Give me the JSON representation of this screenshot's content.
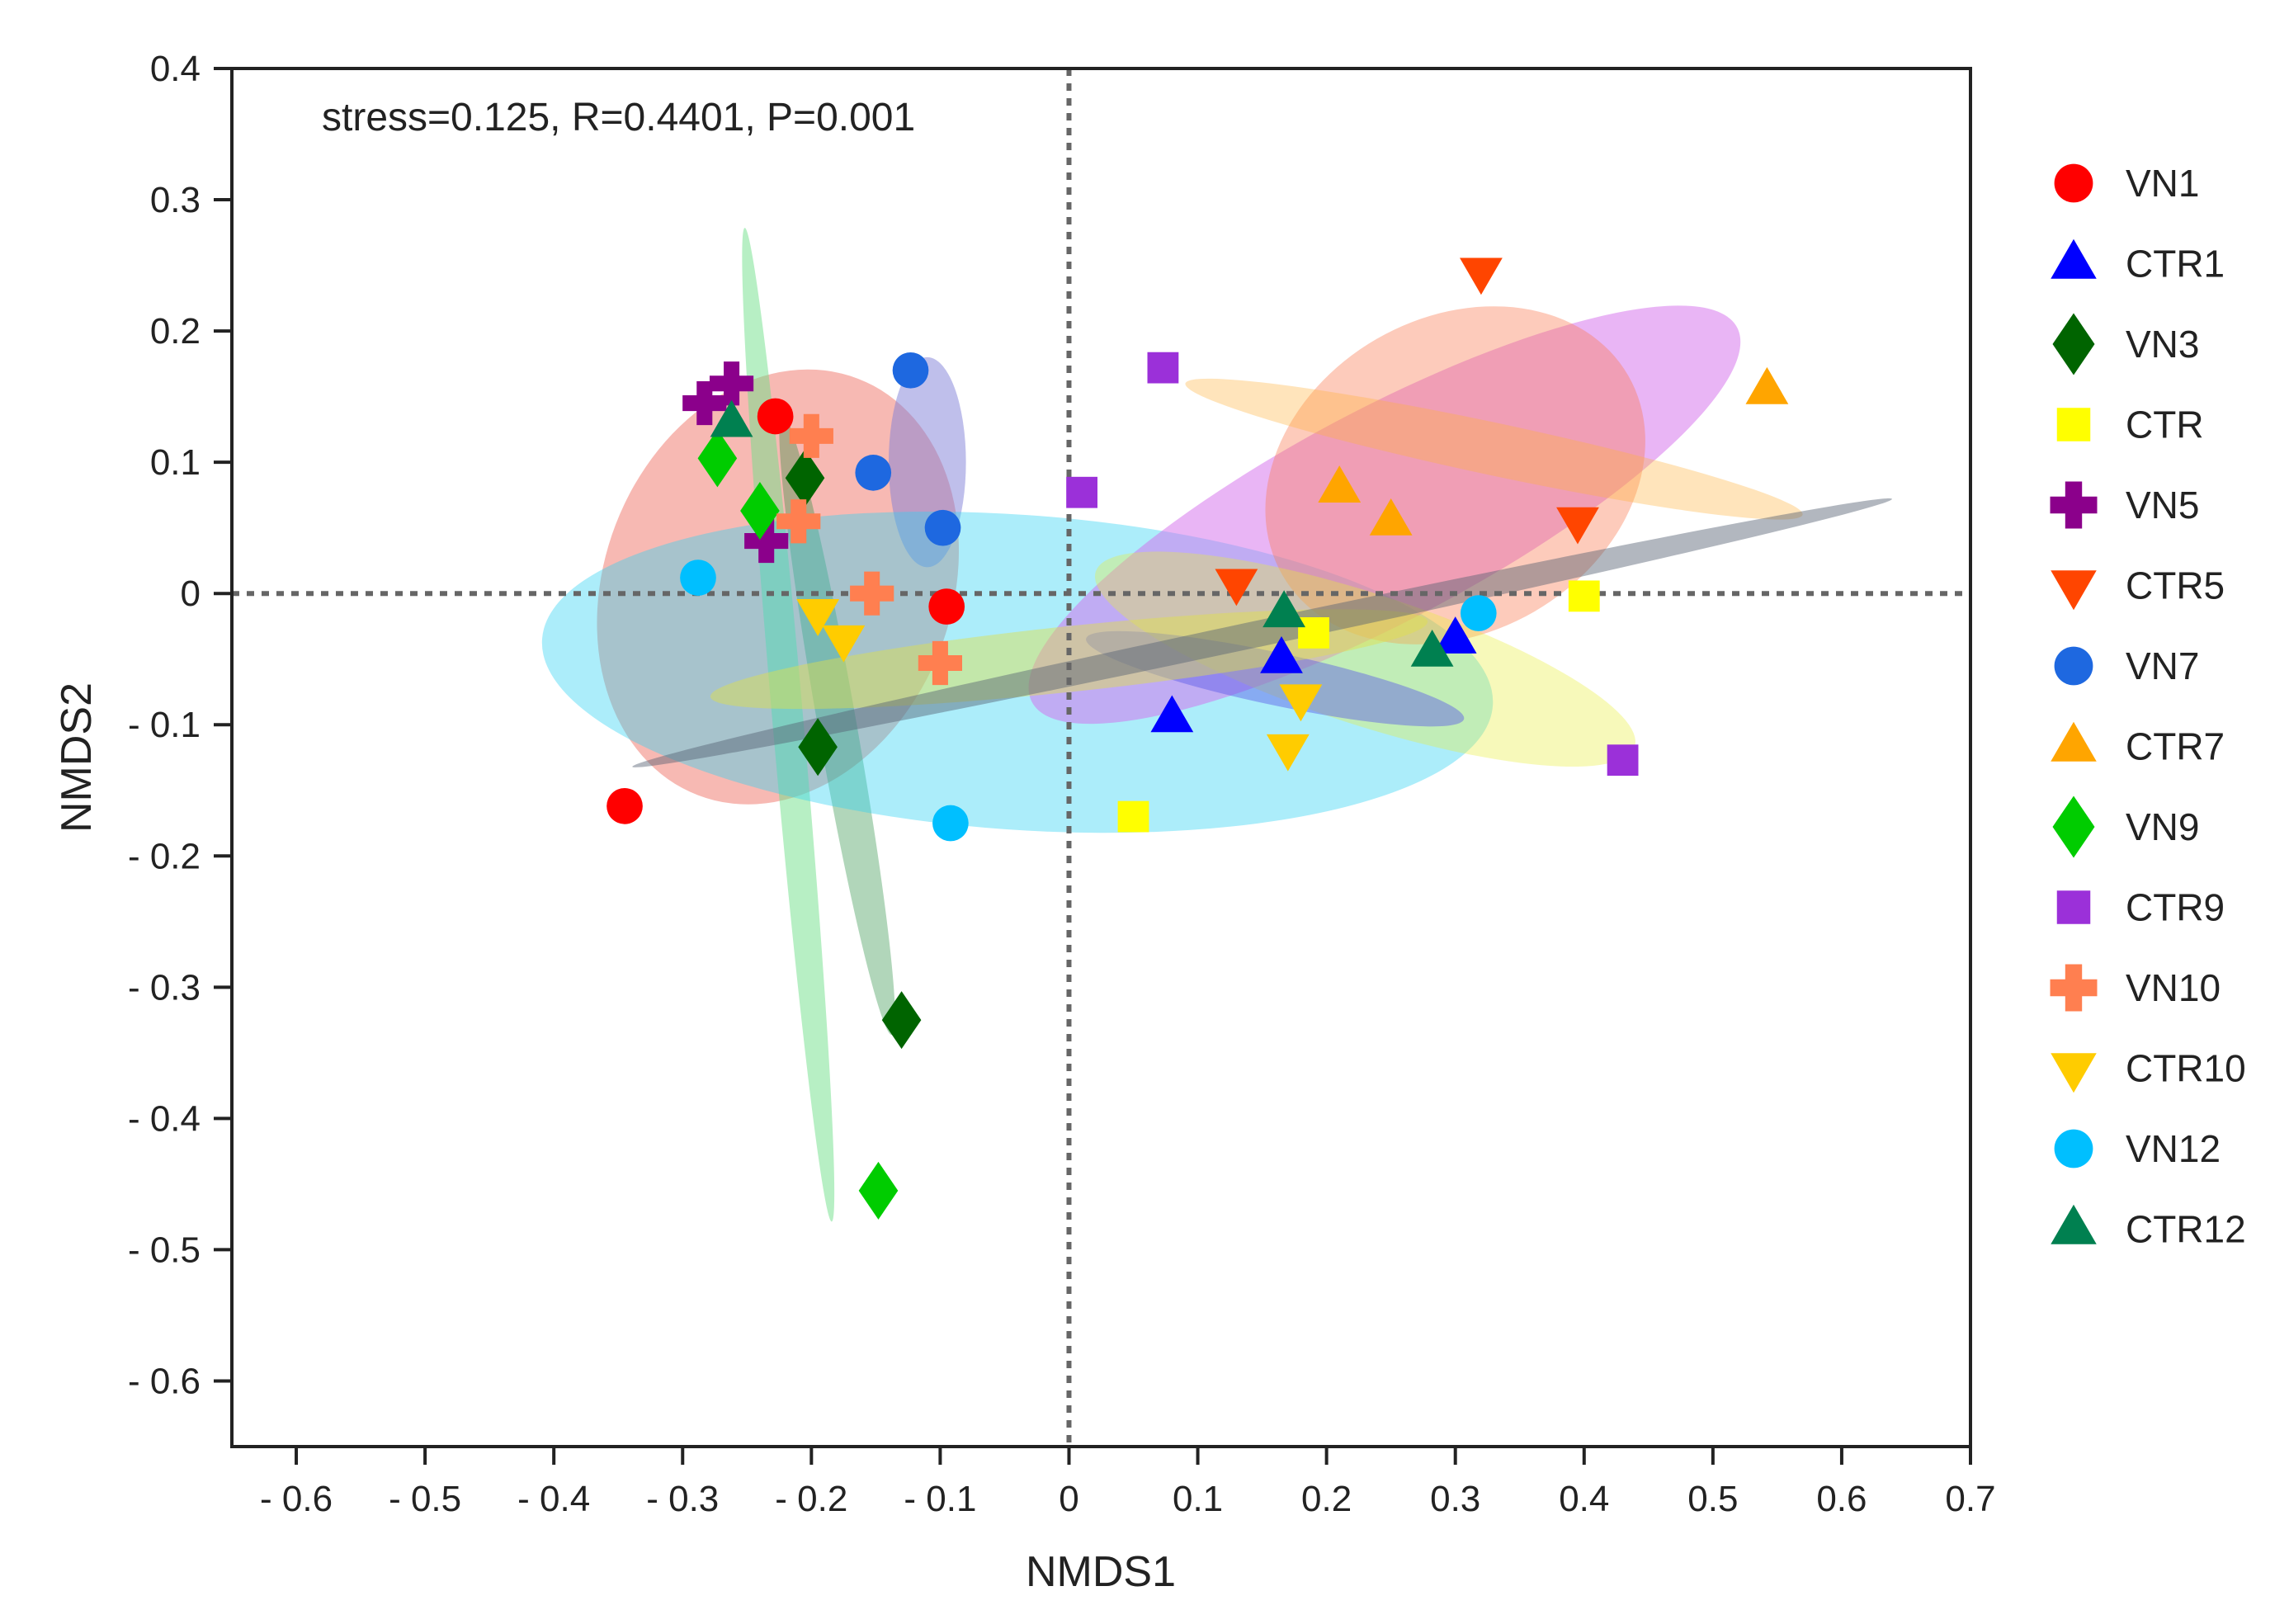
{
  "chart_data": {
    "type": "scatter",
    "title": "",
    "xlabel": "NMDS1",
    "ylabel": "NMDS2",
    "xlim": [
      -0.65,
      0.7
    ],
    "ylim": [
      -0.65,
      0.4
    ],
    "xticks": [
      -0.6,
      -0.5,
      -0.4,
      -0.3,
      -0.2,
      -0.1,
      0,
      0.1,
      0.2,
      0.3,
      0.4,
      0.5,
      0.6,
      0.7
    ],
    "xtick_labels": [
      "- 0.6",
      "- 0.5",
      "- 0.4",
      "- 0.3",
      "- 0.2",
      "- 0.1",
      "0",
      "0.1",
      "0.2",
      "0.3",
      "0.4",
      "0.5",
      "0.6",
      "0.7"
    ],
    "yticks": [
      0.4,
      0.3,
      0.2,
      0.1,
      0,
      -0.1,
      -0.2,
      -0.3,
      -0.4,
      -0.5,
      -0.6
    ],
    "ytick_labels": [
      "0.4",
      "0.3",
      "0.2",
      "0.1",
      "0",
      "- 0.1",
      "- 0.2",
      "- 0.3",
      "- 0.4",
      "- 0.5",
      "- 0.6"
    ],
    "annotation": "stress=0.125, R=0.4401, P=0.001",
    "reference_lines": [
      {
        "axis": "x",
        "value": 0,
        "style": "dotted"
      },
      {
        "axis": "y",
        "value": 0,
        "style": "dotted"
      }
    ],
    "legend_position": "right",
    "ellipses": [
      {
        "group": "VN1",
        "center": [
          -0.226,
          0.005
        ],
        "rx": 0.135,
        "ry": 0.17,
        "angle_deg": 21,
        "color": "#f07468",
        "opacity": 0.5
      },
      {
        "group": "VN3",
        "center": [
          -0.18,
          -0.1
        ],
        "rx": 0.015,
        "ry": 0.24,
        "angle_deg": -10,
        "color": "#1f8a3a",
        "opacity": 0.35
      },
      {
        "group": "VN9",
        "center": [
          -0.218,
          -0.1
        ],
        "rx": 0.012,
        "ry": 0.38,
        "angle_deg": -5,
        "color": "#6fe08a",
        "opacity": 0.5
      },
      {
        "group": "VN7",
        "center": [
          -0.11,
          0.1
        ],
        "rx": 0.03,
        "ry": 0.08,
        "angle_deg": 0,
        "color": "#8080d8",
        "opacity": 0.5
      },
      {
        "group": "VN12",
        "center": [
          -0.04,
          -0.06
        ],
        "rx": 0.37,
        "ry": 0.12,
        "angle_deg": 4,
        "color": "#2fd3f2",
        "opacity": 0.4
      },
      {
        "group": "CTR9",
        "center": [
          0.245,
          0.06
        ],
        "rx": 0.31,
        "ry": 0.08,
        "angle_deg": -28,
        "color": "#d36cec",
        "opacity": 0.5
      },
      {
        "group": "CTR5",
        "center": [
          0.3,
          0.09
        ],
        "rx": 0.155,
        "ry": 0.12,
        "angle_deg": -30,
        "color": "#fa7d56",
        "opacity": 0.4
      },
      {
        "group": "CTR7",
        "center": [
          0.33,
          0.11
        ],
        "rx": 0.245,
        "ry": 0.02,
        "angle_deg": 12,
        "color": "#ffb33b",
        "opacity": 0.35
      },
      {
        "group": "CTR",
        "center": [
          0.23,
          -0.05
        ],
        "rx": 0.22,
        "ry": 0.05,
        "angle_deg": 18,
        "color": "#e8ee3a",
        "opacity": 0.35
      },
      {
        "group": "CTR1",
        "center": [
          0.16,
          -0.065
        ],
        "rx": 0.15,
        "ry": 0.02,
        "angle_deg": 12,
        "color": "#5a5ae8",
        "opacity": 0.45
      },
      {
        "group": "CTR10",
        "center": [
          0.0,
          -0.05
        ],
        "rx": 0.28,
        "ry": 0.025,
        "angle_deg": -6,
        "color": "#dfe04a",
        "opacity": 0.45
      },
      {
        "group": "VN5",
        "center": [
          0.15,
          -0.03
        ],
        "rx": 0.5,
        "ry": 0.01,
        "angle_deg": -12,
        "color": "#556070",
        "opacity": 0.45
      }
    ],
    "series": [
      {
        "name": "VN1",
        "marker": "circle",
        "color": "#ff0000",
        "points": [
          [
            -0.345,
            -0.162
          ],
          [
            -0.228,
            0.135
          ],
          [
            -0.095,
            -0.01
          ]
        ]
      },
      {
        "name": "CTR1",
        "marker": "triangle-up",
        "color": "#0000ff",
        "points": [
          [
            0.08,
            -0.095
          ],
          [
            0.165,
            -0.05
          ],
          [
            0.3,
            -0.035
          ]
        ]
      },
      {
        "name": "VN3",
        "marker": "diamond",
        "color": "#006400",
        "points": [
          [
            -0.205,
            0.088
          ],
          [
            -0.195,
            -0.117
          ],
          [
            -0.13,
            -0.325
          ]
        ]
      },
      {
        "name": "CTR",
        "marker": "square",
        "color": "#ffff00",
        "points": [
          [
            0.05,
            -0.17
          ],
          [
            0.19,
            -0.03
          ],
          [
            0.4,
            -0.002
          ]
        ]
      },
      {
        "name": "VN5",
        "marker": "cross",
        "color": "#8b008b",
        "points": [
          [
            -0.283,
            0.145
          ],
          [
            -0.262,
            0.16
          ],
          [
            -0.235,
            0.04
          ]
        ]
      },
      {
        "name": "CTR5",
        "marker": "triangle-down",
        "color": "#ff4500",
        "points": [
          [
            0.13,
            0.008
          ],
          [
            0.32,
            0.245
          ],
          [
            0.395,
            0.055
          ]
        ]
      },
      {
        "name": "VN7",
        "marker": "circle",
        "color": "#1e68e0",
        "points": [
          [
            -0.123,
            0.17
          ],
          [
            -0.152,
            0.092
          ],
          [
            -0.098,
            0.05
          ]
        ]
      },
      {
        "name": "CTR7",
        "marker": "triangle-up",
        "color": "#ffa500",
        "points": [
          [
            0.21,
            0.08
          ],
          [
            0.25,
            0.055
          ],
          [
            0.542,
            0.155
          ]
        ]
      },
      {
        "name": "VN9",
        "marker": "diamond",
        "color": "#00cc00",
        "points": [
          [
            -0.273,
            0.103
          ],
          [
            -0.24,
            0.063
          ],
          [
            -0.148,
            -0.455
          ]
        ]
      },
      {
        "name": "CTR9",
        "marker": "square",
        "color": "#9b30d9",
        "points": [
          [
            0.073,
            0.172
          ],
          [
            0.01,
            0.077
          ],
          [
            0.43,
            -0.127
          ]
        ]
      },
      {
        "name": "VN10",
        "marker": "cross",
        "color": "#ff7f50",
        "points": [
          [
            -0.2,
            0.12
          ],
          [
            -0.21,
            0.055
          ],
          [
            -0.153,
            0.0
          ],
          [
            -0.1,
            -0.053
          ]
        ]
      },
      {
        "name": "CTR10",
        "marker": "triangle-down",
        "color": "#ffcc00",
        "points": [
          [
            -0.195,
            -0.015
          ],
          [
            -0.175,
            -0.035
          ],
          [
            0.18,
            -0.08
          ],
          [
            0.17,
            -0.118
          ]
        ]
      },
      {
        "name": "VN12",
        "marker": "circle",
        "color": "#00bfff",
        "points": [
          [
            -0.288,
            0.012
          ],
          [
            -0.092,
            -0.175
          ],
          [
            0.318,
            -0.015
          ]
        ]
      },
      {
        "name": "CTR12",
        "marker": "triangle-up",
        "color": "#008050",
        "points": [
          [
            -0.262,
            0.13
          ],
          [
            0.167,
            -0.015
          ],
          [
            0.282,
            -0.045
          ]
        ]
      }
    ]
  }
}
